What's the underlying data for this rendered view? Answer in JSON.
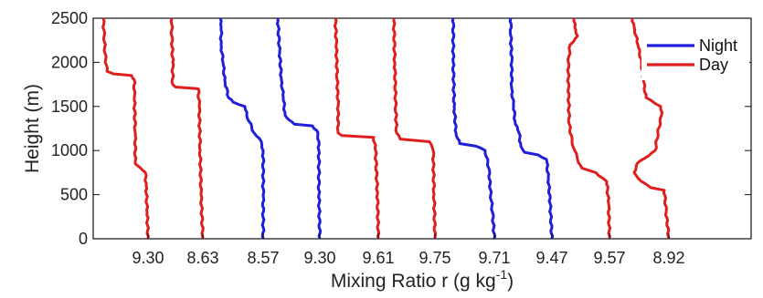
{
  "chart_data": {
    "type": "line",
    "xlabel": "Mixing Ratio r (g kg",
    "xlabel_superscript": "-1",
    "xlabel_suffix": ")",
    "ylabel": "Height (m)",
    "ylim": [
      0,
      2500
    ],
    "yticks": [
      0,
      500,
      1000,
      1500,
      2000,
      2500
    ],
    "grid": false,
    "legend_placement": "top-right",
    "legend": [
      {
        "name": "Night",
        "color": "#1f1fdc"
      },
      {
        "name": "Day",
        "color": "#e01e1e"
      }
    ],
    "colors": {
      "night": "#1f1fdc",
      "day": "#e01e1e"
    },
    "profiles": [
      {
        "label": "9.30",
        "type": "day",
        "points": [
          [
            0,
            0
          ],
          [
            300,
            -1
          ],
          [
            600,
            -2
          ],
          [
            750,
            -3
          ],
          [
            800,
            -8
          ],
          [
            850,
            -14
          ],
          [
            1200,
            -14
          ],
          [
            1600,
            -15
          ],
          [
            1800,
            -15
          ],
          [
            1850,
            -18
          ],
          [
            1870,
            -38
          ],
          [
            1900,
            -45
          ],
          [
            2100,
            -47
          ],
          [
            2300,
            -48
          ],
          [
            2500,
            -49
          ]
        ]
      },
      {
        "label": "8.63",
        "type": "day",
        "points": [
          [
            0,
            0
          ],
          [
            500,
            -2
          ],
          [
            1000,
            -3
          ],
          [
            1500,
            -4
          ],
          [
            1700,
            -5
          ],
          [
            1720,
            -30
          ],
          [
            1750,
            -33
          ],
          [
            2000,
            -33
          ],
          [
            2300,
            -34
          ],
          [
            2500,
            -34
          ]
        ]
      },
      {
        "label": "8.57",
        "type": "night",
        "points": [
          [
            0,
            0
          ],
          [
            500,
            0
          ],
          [
            1000,
            0
          ],
          [
            1100,
            -2
          ],
          [
            1200,
            -10
          ],
          [
            1400,
            -18
          ],
          [
            1500,
            -20
          ],
          [
            1550,
            -33
          ],
          [
            1600,
            -38
          ],
          [
            1800,
            -42
          ],
          [
            2000,
            -44
          ],
          [
            2200,
            -46
          ],
          [
            2400,
            -46
          ],
          [
            2500,
            -47
          ]
        ]
      },
      {
        "label": "9.30",
        "type": "night",
        "points": [
          [
            0,
            0
          ],
          [
            500,
            -1
          ],
          [
            1000,
            -1
          ],
          [
            1200,
            -2
          ],
          [
            1280,
            -8
          ],
          [
            1300,
            -28
          ],
          [
            1350,
            -34
          ],
          [
            1400,
            -38
          ],
          [
            1600,
            -40
          ],
          [
            1800,
            -42
          ],
          [
            2100,
            -44
          ],
          [
            2500,
            -46
          ]
        ]
      },
      {
        "label": "9.61",
        "type": "day",
        "points": [
          [
            0,
            0
          ],
          [
            500,
            -1
          ],
          [
            1000,
            -3
          ],
          [
            1150,
            -5
          ],
          [
            1170,
            -40
          ],
          [
            1200,
            -44
          ],
          [
            1500,
            -44
          ],
          [
            1800,
            -45
          ],
          [
            2200,
            -46
          ],
          [
            2500,
            -47
          ]
        ]
      },
      {
        "label": "9.75",
        "type": "day",
        "points": [
          [
            0,
            0
          ],
          [
            500,
            -1
          ],
          [
            1000,
            -2
          ],
          [
            1100,
            -6
          ],
          [
            1130,
            -38
          ],
          [
            1200,
            -42
          ],
          [
            1500,
            -43
          ],
          [
            2000,
            -44
          ],
          [
            2500,
            -45
          ]
        ]
      },
      {
        "label": "9.71",
        "type": "night",
        "points": [
          [
            0,
            0
          ],
          [
            300,
            -2
          ],
          [
            500,
            -4
          ],
          [
            800,
            -6
          ],
          [
            1000,
            -10
          ],
          [
            1050,
            -20
          ],
          [
            1080,
            -38
          ],
          [
            1200,
            -42
          ],
          [
            1500,
            -44
          ],
          [
            2000,
            -45
          ],
          [
            2500,
            -45
          ]
        ]
      },
      {
        "label": "9.47",
        "type": "night",
        "points": [
          [
            0,
            0
          ],
          [
            400,
            -2
          ],
          [
            700,
            -4
          ],
          [
            900,
            -6
          ],
          [
            950,
            -15
          ],
          [
            980,
            -30
          ],
          [
            1050,
            -34
          ],
          [
            1200,
            -36
          ],
          [
            1300,
            -40
          ],
          [
            1500,
            -42
          ],
          [
            1700,
            -44
          ],
          [
            2000,
            -44
          ],
          [
            2300,
            -45
          ],
          [
            2500,
            -45
          ]
        ]
      },
      {
        "label": "9.57",
        "type": "day",
        "points": [
          [
            0,
            0
          ],
          [
            400,
            -1
          ],
          [
            650,
            -3
          ],
          [
            750,
            -15
          ],
          [
            800,
            -30
          ],
          [
            900,
            -35
          ],
          [
            1000,
            -38
          ],
          [
            1100,
            -41
          ],
          [
            1300,
            -44
          ],
          [
            1700,
            -45
          ],
          [
            2000,
            -45
          ],
          [
            2200,
            -43
          ],
          [
            2300,
            -35
          ],
          [
            2400,
            -38
          ],
          [
            2500,
            -39
          ]
        ]
      },
      {
        "label": "8.92",
        "type": "day",
        "points": [
          [
            0,
            0
          ],
          [
            300,
            -3
          ],
          [
            550,
            -5
          ],
          [
            580,
            -20
          ],
          [
            650,
            -30
          ],
          [
            750,
            -38
          ],
          [
            850,
            -35
          ],
          [
            1000,
            -15
          ],
          [
            1200,
            -12
          ],
          [
            1400,
            -8
          ],
          [
            1500,
            -9
          ],
          [
            1600,
            -25
          ],
          [
            1800,
            -28
          ],
          [
            2000,
            -30
          ],
          [
            2200,
            -34
          ],
          [
            2400,
            -38
          ],
          [
            2500,
            -40
          ]
        ]
      }
    ]
  }
}
